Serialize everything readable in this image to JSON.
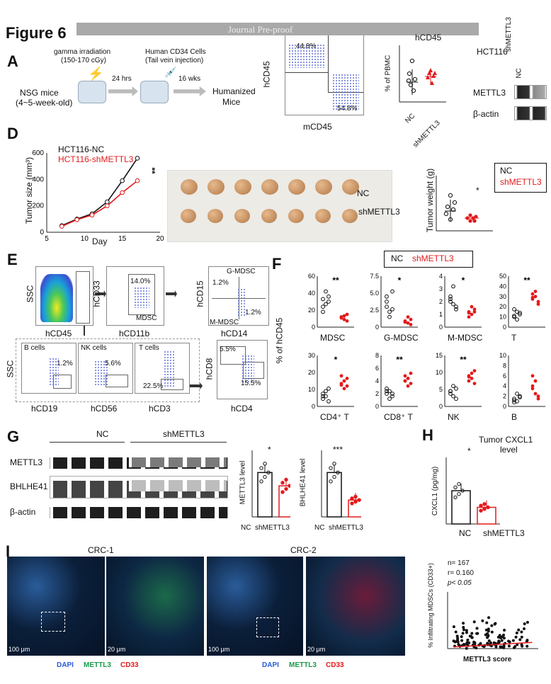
{
  "header": {
    "figure_label": "Figure 6",
    "watermark": "Journal Pre-proof"
  },
  "panelA": {
    "label": "A",
    "step1": "gamma irradiation",
    "step1_dose": "(150-170 cGy)",
    "step2": "Human CD34 Cells",
    "step2_detail": "(Tail vein injection)",
    "mice": "NSG  mice",
    "mice_age": "(4~5-week-old)",
    "t1": "24 hrs",
    "t2": "16 wks",
    "result1": "Humanized",
    "result2": "Mice"
  },
  "panelB": {
    "label": "B",
    "ylab": "hCD45",
    "xlab": "mCD45",
    "gate1": "44.8%",
    "gate2": "54.8%",
    "chart_title": "hCD45",
    "chart_ylab": "% of PBMC",
    "cat_nc": "NC",
    "cat_sh": "shMETTL3"
  },
  "panelC": {
    "label": "C",
    "cell": "HCT116",
    "col_nc": "NC",
    "col_sh": "shMETTL3",
    "row1": "METTL3",
    "row2": "β-actin"
  },
  "panelD": {
    "label": "D",
    "legend_nc": "HCT116-NC",
    "legend_sh": "HCT116-shMETTL3",
    "ylab": "Tumor size  (mm³)",
    "xlab": "Day",
    "sig": "**",
    "photo_nc": "NC",
    "photo_sh": "shMETTL3",
    "wt_ylab": "Tumor weight (g)",
    "wt_sig": "*",
    "wt_legend_nc": "NC",
    "wt_legend_sh": "shMETTL3"
  },
  "panelE": {
    "label": "E",
    "ssc": "SSC",
    "hcd45": "hCD45",
    "hcd33": "hCD33",
    "hcd11b": "hCD11b",
    "mdsc": "MDSC",
    "mdsc_pct": "14.0%",
    "hcd15": "hCD15",
    "hcd14": "hCD14",
    "gmdsc": "G-MDSC",
    "mmdsc": "M-MDSC",
    "g_pct": "1.2%",
    "m_pct": "1.2%",
    "bcells": "B cells",
    "nkcells": "NK cells",
    "tcells": "T cells",
    "b_pct": "1.2%",
    "nk_pct": "5.6%",
    "t_pct": "22.5%",
    "hcd19": "hCD19",
    "hcd56": "hCD56",
    "hcd3": "hCD3",
    "hcd8": "hCD8",
    "hcd4": "hCD4",
    "cd8_pct": "5.5%",
    "cd4_pct": "15.5%"
  },
  "panelF": {
    "label": "F",
    "legend_nc": "NC",
    "legend_sh": "shMETTL3",
    "ylab": "% of hCD45",
    "plots": [
      {
        "name": "MDSC",
        "sig": "**",
        "ticks": [
          "0",
          "20",
          "40",
          "60"
        ]
      },
      {
        "name": "G-MDSC",
        "sig": "*",
        "ticks": [
          "0",
          "2.5",
          "5.0",
          "7.5"
        ]
      },
      {
        "name": "M-MDSC",
        "sig": "*",
        "ticks": [
          "0",
          "1",
          "2",
          "3",
          "4"
        ]
      },
      {
        "name": "T",
        "sig": "**",
        "ticks": [
          "0",
          "10",
          "20",
          "30",
          "40",
          "50"
        ]
      },
      {
        "name": "CD4⁺ T",
        "sig": "*",
        "ticks": [
          "0",
          "10",
          "20",
          "30"
        ]
      },
      {
        "name": "CD8⁺ T",
        "sig": "**",
        "ticks": [
          "0",
          "2",
          "4",
          "6",
          "8"
        ]
      },
      {
        "name": "NK",
        "sig": "**",
        "ticks": [
          "0",
          "5",
          "10",
          "15"
        ]
      },
      {
        "name": "B",
        "sig": "",
        "ticks": [
          "0",
          "2",
          "4",
          "6",
          "8",
          "10"
        ]
      }
    ]
  },
  "panelG": {
    "label": "G",
    "nc": "NC",
    "sh": "shMETTL3",
    "row1": "METTL3",
    "row2": "BHLHE41",
    "row3": "β-actin",
    "bar1_ylab": "METTL3 level",
    "bar1_sig": "*",
    "bar2_ylab": "BHLHE41 level",
    "bar2_sig": "***",
    "xcat_nc": "NC",
    "xcat_sh": "shMETTL3"
  },
  "panelH": {
    "label": "H",
    "title1": "Tumor CXCL1",
    "title2": "level",
    "sig": "*",
    "ylab": "CXCL1 (pg/mg)",
    "cat_nc": "NC",
    "cat_sh": "shMETTL3"
  },
  "panelI": {
    "label": "I",
    "crc1": "CRC-1",
    "crc2": "CRC-2",
    "scale1": "100 μm",
    "scale2": "20 μm",
    "scale3": "100 μm",
    "scale4": "20 μm",
    "dapi": "DAPI",
    "mettl3": "METTL3",
    "cd33": "CD33",
    "stat_n": "n= 167",
    "stat_r": "r= 0.160",
    "stat_p": "p< 0.05",
    "ylab": "% Infiltrating MDSCs (CD33+)",
    "xlab": "METTL3 score"
  },
  "chart_data": [
    {
      "type": "line",
      "title": "",
      "xlabel": "Day",
      "ylabel": "Tumor size (mm³)",
      "x": [
        7,
        9,
        11,
        13,
        15,
        17
      ],
      "xlim": [
        5,
        20
      ],
      "ylim": [
        0,
        600
      ],
      "series": [
        {
          "name": "HCT116-NC",
          "values": [
            50,
            100,
            140,
            230,
            390,
            560
          ]
        },
        {
          "name": "HCT116-shMETTL3",
          "values": [
            45,
            95,
            130,
            200,
            300,
            390
          ]
        }
      ]
    },
    {
      "type": "scatter",
      "title": "hCD45",
      "ylabel": "% of PBMC",
      "categories": [
        "NC",
        "shMETTL3"
      ],
      "means": [
        33,
        35
      ],
      "ylim": [
        0,
        60
      ]
    },
    {
      "type": "scatter",
      "title": "",
      "ylabel": "Tumor weight (g)",
      "categories": [
        "NC",
        "shMETTL3"
      ],
      "means": [
        0.46,
        0.35
      ],
      "ylim": [
        0.2,
        0.8
      ]
    },
    {
      "type": "bar",
      "ylabel": "METTL3 level",
      "categories": [
        "NC",
        "shMETTL3"
      ],
      "values": [
        1.0,
        0.7
      ],
      "ylim": [
        0,
        1.5
      ]
    },
    {
      "type": "bar",
      "ylabel": "BHLHE41 level",
      "categories": [
        "NC",
        "shMETTL3"
      ],
      "values": [
        1.0,
        0.38
      ],
      "ylim": [
        0,
        1.5
      ]
    },
    {
      "type": "bar",
      "title": "Tumor CXCL1 level",
      "ylabel": "CXCL1 (pg/mg)",
      "categories": [
        "NC",
        "shMETTL3"
      ],
      "values": [
        20,
        10
      ],
      "ylim": [
        0,
        40
      ]
    },
    {
      "type": "scatter",
      "xlabel": "METTL3 score",
      "ylabel": "% Infiltrating MDSCs (CD33+)",
      "xlim": [
        0,
        45
      ],
      "ylim": [
        0,
        10
      ]
    }
  ]
}
